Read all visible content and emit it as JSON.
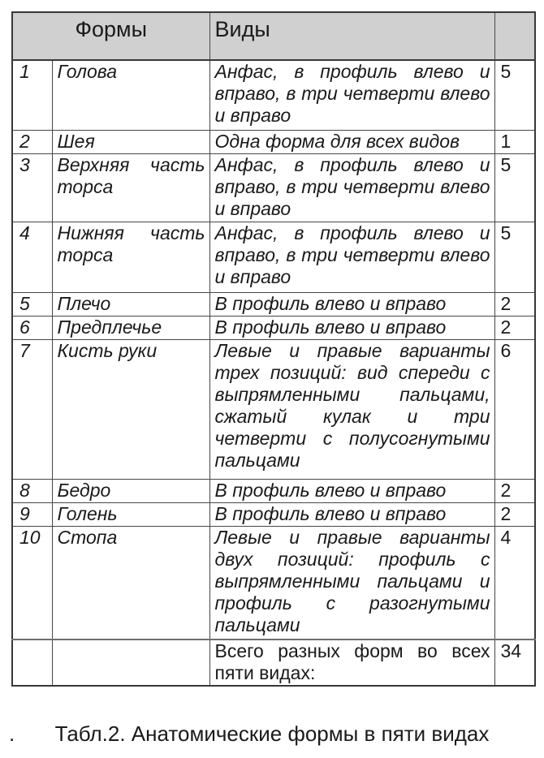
{
  "table": {
    "headers": {
      "forms": "Формы",
      "views": "Виды",
      "count": ""
    },
    "rows": [
      {
        "num": "1",
        "form": "Голова",
        "views": "Анфас, в профиль влево и вправо, в три четверти влево и вправо",
        "count": "5"
      },
      {
        "num": "2",
        "form": "Шея",
        "views": "Одна форма для всех видов",
        "count": "1"
      },
      {
        "num": "3",
        "form": "Верхняя часть торса",
        "views": "Анфас, в профиль влево и вправо, в три четверти влево и вправо",
        "count": "5"
      },
      {
        "num": "4",
        "form": "Нижняя часть торса",
        "views": "Анфас, в профиль влево и вправо, в три четверти влево и вправо",
        "count": "5"
      },
      {
        "num": "5",
        "form": "Плечо",
        "views": "В профиль влево и вправо",
        "count": "2"
      },
      {
        "num": "6",
        "form": "Предплечье",
        "views": "В профиль влево и вправо",
        "count": "2"
      },
      {
        "num": "7",
        "form": "Кисть руки",
        "views": "Левые и правые варианты трех позиций: вид спереди с выпрямленными пальцами, сжатый кулак и три четверти с полусогнутыми пальцами",
        "count": "6"
      },
      {
        "num": "8",
        "form": "Бедро",
        "views": "В профиль влево и вправо",
        "count": "2"
      },
      {
        "num": "9",
        "form": "Голень",
        "views": "В профиль влево и вправо",
        "count": "2"
      },
      {
        "num": "10",
        "form": "Стопа",
        "views": "Левые и правые варианты двух позиций: профиль с выпрямленными пальцами и профиль с разогнутыми пальцами",
        "count": "4"
      },
      {
        "num": "",
        "form": "",
        "views": "Всего разных форм во всех пяти видах:",
        "count": "34",
        "is_total": true
      }
    ]
  },
  "caption": {
    "prefix": ".",
    "text": "Табл.2. Анатомические формы в пяти видах"
  },
  "colors": {
    "header_background": "#d0d0d0",
    "border": "#474747",
    "outer_border": "#383838",
    "text": "#1a1a1a"
  }
}
